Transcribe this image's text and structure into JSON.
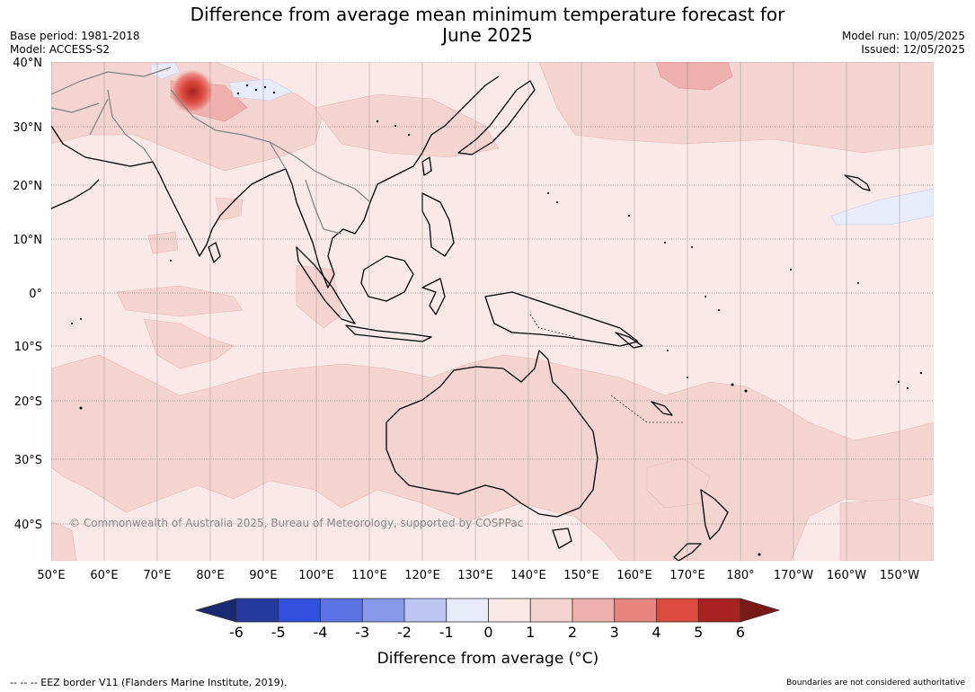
{
  "title": {
    "line1": "Difference from average mean minimum temperature forecast for",
    "line2": "June 2025"
  },
  "meta_left": {
    "base_period": "Base period: 1981-2018",
    "model": "Model: ACCESS-S2"
  },
  "meta_right": {
    "model_run": "Model run: 10/05/2025",
    "issued": "Issued: 12/05/2025"
  },
  "map": {
    "lat_labels": [
      "40°N",
      "30°N",
      "20°N",
      "10°N",
      "0°",
      "10°S",
      "20°S",
      "30°S",
      "40°S"
    ],
    "lon_labels": [
      "50°E",
      "60°E",
      "70°E",
      "80°E",
      "90°E",
      "100°E",
      "110°E",
      "120°E",
      "130°E",
      "140°E",
      "150°E",
      "160°E",
      "170°E",
      "180°",
      "170°W",
      "160°W",
      "150°W"
    ],
    "copyright": "© Commonwealth of Australia 2025, Bureau of Meteorology, supported by COSPPac",
    "colors": {
      "ocean_base": "#fbe9e7",
      "warm_1_2": "#f4d4d1",
      "warm_2_3": "#eeb0ac",
      "warm_3_4": "#e8857f",
      "cool_0_1": "#e8ebfa",
      "hotspot": "#a8231f",
      "coast": "#000000",
      "borders": "#808080",
      "grid": "#555555"
    }
  },
  "colorbar": {
    "ticks": [
      "-6",
      "-5",
      "-4",
      "-3",
      "-2",
      "-1",
      "0",
      "1",
      "2",
      "3",
      "4",
      "5",
      "6"
    ],
    "colors": [
      "#263a9e",
      "#3050de",
      "#5c73e4",
      "#8899ec",
      "#bcc5f2",
      "#e8ebfa",
      "#fbe9e7",
      "#f4d4d1",
      "#eeb0ac",
      "#e8857f",
      "#dc4a40",
      "#a8231f"
    ],
    "low_extend": "#1a2a70",
    "high_extend": "#7a1a16",
    "label": "Difference from average (°C)"
  },
  "footer": {
    "eez": "--  --  -- EEZ border V11 (Flanders Marine Institute, 2019).",
    "disclaimer": "Boundaries are not considered authoritative"
  }
}
